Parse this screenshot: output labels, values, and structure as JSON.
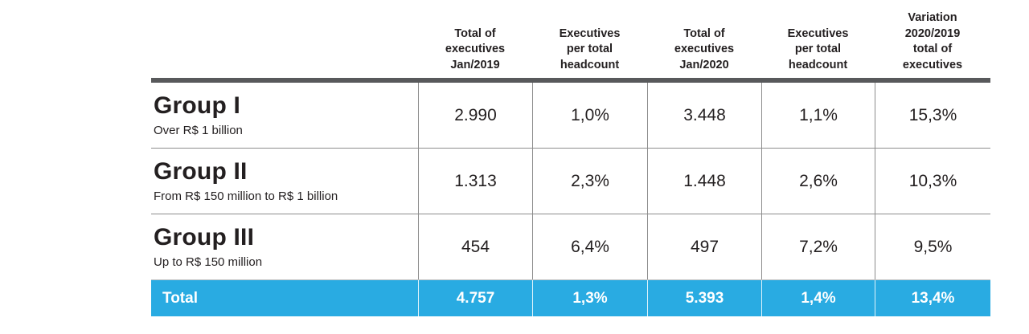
{
  "colors": {
    "accent_blue": "#29abe2",
    "header_bar_gray": "#58595b",
    "grid_line_gray": "#8c8c8c",
    "text_dark": "#231f20",
    "total_text": "#ffffff"
  },
  "table": {
    "column_headers": [
      "Total of\nexecutives\nJan/2019",
      "Executives\nper total\nheadcount",
      "Total of\nexecutives\nJan/2020",
      "Executives\nper total\nheadcount",
      "Variation\n2020/2019\ntotal of\nexecutives"
    ],
    "rows": [
      {
        "group": "Group I",
        "description": "Over R$ 1 billion",
        "values": [
          "2.990",
          "1,0%",
          "3.448",
          "1,1%",
          "15,3%"
        ]
      },
      {
        "group": "Group II",
        "description": "From R$ 150 million to R$ 1 billion",
        "values": [
          "1.313",
          "2,3%",
          "1.448",
          "2,6%",
          "10,3%"
        ]
      },
      {
        "group": "Group III",
        "description": "Up to R$ 150 million",
        "values": [
          "454",
          "6,4%",
          "497",
          "7,2%",
          "9,5%"
        ]
      }
    ],
    "total_row": {
      "label": "Total",
      "values": [
        "4.757",
        "1,3%",
        "5.393",
        "1,4%",
        "13,4%"
      ]
    }
  }
}
